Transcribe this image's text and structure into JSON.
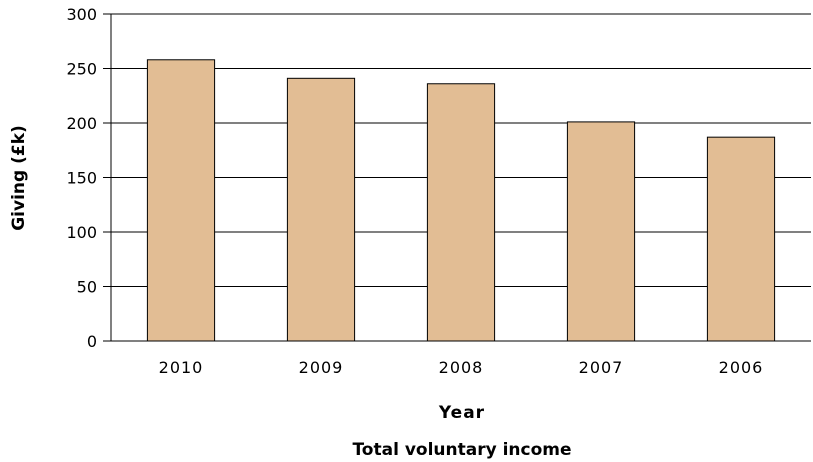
{
  "chart_data": {
    "type": "bar",
    "title": "Total voluntary income",
    "xlabel": "Year",
    "ylabel": "Giving (£k)",
    "categories": [
      "2010",
      "2009",
      "2008",
      "2007",
      "2006"
    ],
    "values": [
      258,
      241,
      236,
      201,
      187
    ],
    "ylim": [
      0,
      300
    ],
    "yticks": [
      0,
      50,
      100,
      150,
      200,
      250,
      300
    ],
    "grid": true,
    "legend": "none",
    "bar_color": "#e2bd94",
    "bar_stroke": "#000000"
  }
}
